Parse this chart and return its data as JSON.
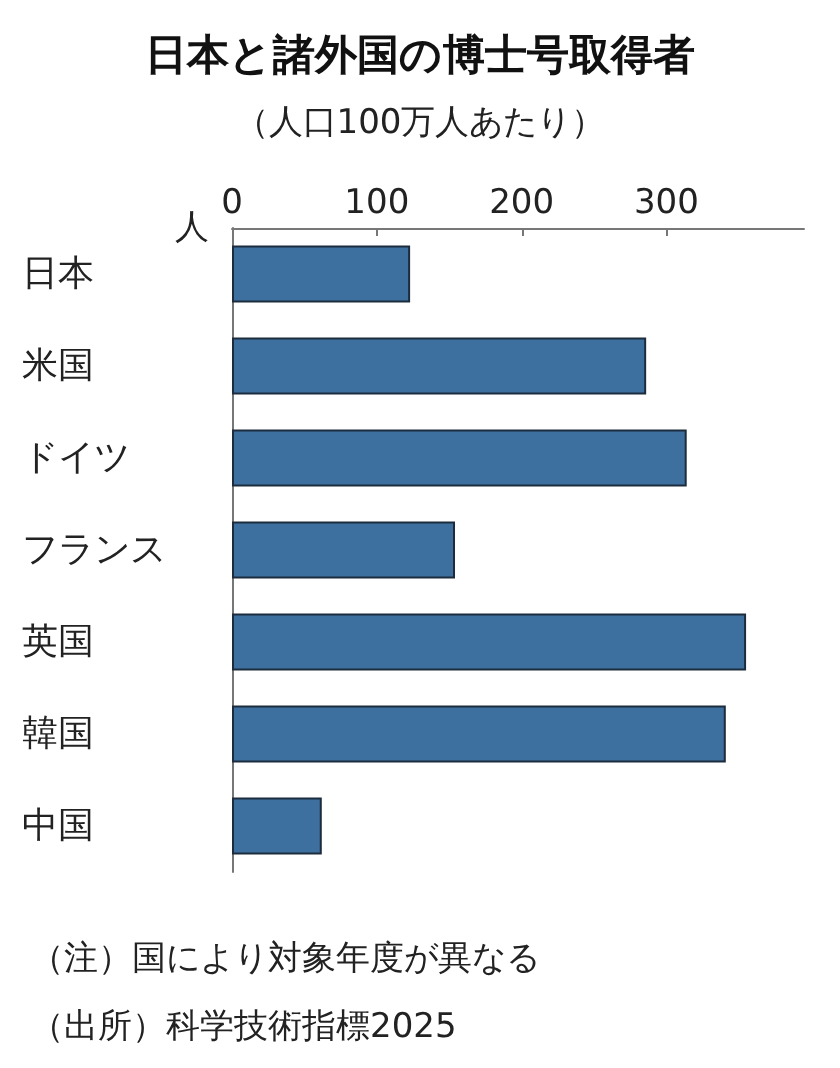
{
  "chart_data": {
    "type": "bar",
    "orientation": "horizontal",
    "title": "日本と諸外国の博士号取得者",
    "subtitle": "（人口100万人あたり）",
    "xlabel": "人",
    "categories": [
      "日本",
      "米国",
      "ドイツ",
      "フランス",
      "英国",
      "韓国",
      "中国"
    ],
    "values": [
      123,
      286,
      314,
      154,
      355,
      341,
      62
    ],
    "color": "#3d6f9f",
    "xlim": [
      0,
      395
    ],
    "xticks": [
      0,
      100,
      200,
      300
    ],
    "grid": false,
    "annotations": [
      "（注）国により対象年度が異なる",
      "（出所）科学技術指標2025"
    ]
  }
}
